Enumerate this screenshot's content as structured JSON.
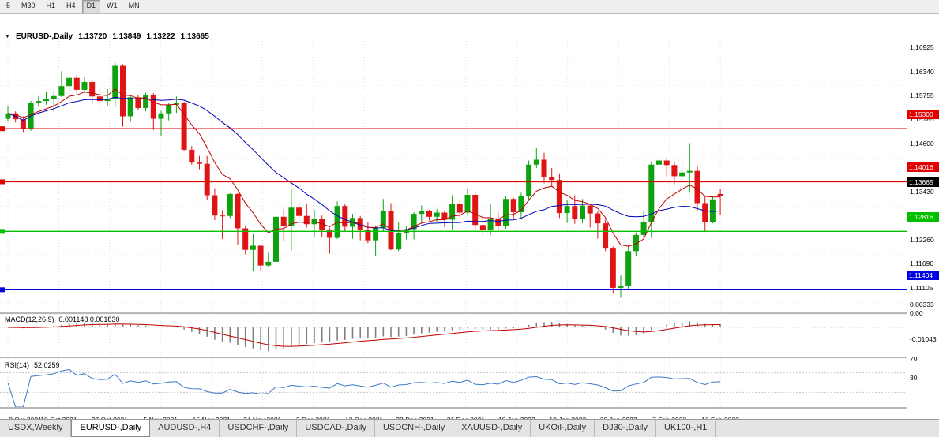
{
  "icons": {
    "dropdown": "▼"
  },
  "toolbar": {
    "timeframes": [
      {
        "label": "5"
      },
      {
        "label": "M30"
      },
      {
        "label": "H1"
      },
      {
        "label": "H4"
      },
      {
        "label": "D1",
        "active": true
      },
      {
        "label": "W1"
      },
      {
        "label": "MN"
      }
    ]
  },
  "tabs": [
    {
      "label": "USDX,Weekly"
    },
    {
      "label": "EURUSD-,Daily",
      "active": true
    },
    {
      "label": "AUDUSD-,H4"
    },
    {
      "label": "USDCHF-,Daily"
    },
    {
      "label": "USDCAD-,Daily"
    },
    {
      "label": "USDCNH-,Daily"
    },
    {
      "label": "XAUUSD-,Daily"
    },
    {
      "label": "UKOil-,Daily"
    },
    {
      "label": "DJ30-,Daily"
    },
    {
      "label": "UK100-,H1"
    }
  ],
  "chart_data": {
    "type": "candlestick",
    "symbol_display": "EURUSD-,Daily",
    "ohlc_display": {
      "open": "1.13720",
      "high": "1.13849",
      "low": "1.13222",
      "close": "1.13665"
    },
    "ylim": [
      1.1086,
      1.17727
    ],
    "up_color": "#0ea30e",
    "down_color": "#e01414",
    "x_labels": [
      "8 Oct 2021",
      "18 Oct 2021",
      "27 Oct 2021",
      "5 Nov 2021",
      "15 Nov 2021",
      "24 Nov 2021",
      "3 Dec 2021",
      "13 Dec 2021",
      "22 Dec 2021",
      "31 Dec 2021",
      "10 Jan 2022",
      "19 Jan 2022",
      "28 Jan 2022",
      "7 Feb 2022",
      "16 Feb 2022"
    ],
    "y_ticks": [
      {
        "label": "1.16925",
        "value": 1.16925
      },
      {
        "label": "1.16340",
        "value": 1.1634
      },
      {
        "label": "1.15755",
        "value": 1.15755
      },
      {
        "label": "1.15185",
        "value": 1.15185
      },
      {
        "label": "1.14600",
        "value": 1.146
      },
      {
        "label": "1.13430",
        "value": 1.1343
      },
      {
        "label": "1.12260",
        "value": 1.1226
      },
      {
        "label": "1.11690",
        "value": 1.1169
      },
      {
        "label": "1.11105",
        "value": 1.11105
      }
    ],
    "hlines": [
      {
        "label": "1.15300",
        "value": 1.153,
        "color": "#e00000"
      },
      {
        "label": "1.14016",
        "value": 1.14016,
        "color": "#e00000"
      },
      {
        "label": "1.12816",
        "value": 1.12816,
        "color": "#00c000"
      },
      {
        "label": "1.11404",
        "value": 1.11404,
        "color": "#0000e0"
      }
    ],
    "current_price": {
      "label": "1.13665",
      "value": 1.13665,
      "color": "#000000"
    },
    "ma_lines": [
      {
        "name": "ma-slow-blue",
        "color": "#0000b8",
        "period": 21,
        "type": "sma"
      },
      {
        "name": "ma-fast-red",
        "color": "#c00000",
        "period": 8,
        "type": "ema"
      }
    ],
    "candles": [
      [
        1.1554,
        1.1586,
        1.1547,
        1.1567
      ],
      [
        1.1567,
        1.1572,
        1.1545,
        1.1553
      ],
      [
        1.1553,
        1.156,
        1.1522,
        1.153
      ],
      [
        1.153,
        1.1597,
        1.1525,
        1.1592
      ],
      [
        1.1592,
        1.1608,
        1.1583,
        1.1597
      ],
      [
        1.1597,
        1.1619,
        1.1588,
        1.1601
      ],
      [
        1.1601,
        1.1621,
        1.1571,
        1.1609
      ],
      [
        1.1609,
        1.1669,
        1.1607,
        1.1633
      ],
      [
        1.1633,
        1.1658,
        1.1617,
        1.1653
      ],
      [
        1.1653,
        1.1659,
        1.1616,
        1.1624
      ],
      [
        1.1624,
        1.1656,
        1.162,
        1.1643
      ],
      [
        1.1643,
        1.1648,
        1.159,
        1.1608
      ],
      [
        1.1608,
        1.1626,
        1.1585,
        1.1597
      ],
      [
        1.1597,
        1.1626,
        1.1585,
        1.1603
      ],
      [
        1.1603,
        1.1692,
        1.1582,
        1.1682
      ],
      [
        1.1682,
        1.1686,
        1.1535,
        1.156
      ],
      [
        1.156,
        1.1609,
        1.1546,
        1.1606
      ],
      [
        1.1606,
        1.1612,
        1.1575,
        1.158
      ],
      [
        1.158,
        1.1617,
        1.1572,
        1.1611
      ],
      [
        1.1611,
        1.1616,
        1.1527,
        1.1554
      ],
      [
        1.1554,
        1.1573,
        1.1513,
        1.1567
      ],
      [
        1.1567,
        1.1592,
        1.155,
        1.1588
      ],
      [
        1.1588,
        1.1608,
        1.1568,
        1.1593
      ],
      [
        1.1593,
        1.1595,
        1.1475,
        1.1479
      ],
      [
        1.1479,
        1.1488,
        1.1443,
        1.1448
      ],
      [
        1.1448,
        1.1464,
        1.1432,
        1.1445
      ],
      [
        1.1445,
        1.1464,
        1.1357,
        1.1369
      ],
      [
        1.1369,
        1.1386,
        1.1309,
        1.132
      ],
      [
        1.132,
        1.1333,
        1.1263,
        1.1319
      ],
      [
        1.1319,
        1.1374,
        1.1314,
        1.1372
      ],
      [
        1.1372,
        1.1374,
        1.125,
        1.1289
      ],
      [
        1.1289,
        1.1296,
        1.1226,
        1.1237
      ],
      [
        1.1237,
        1.1275,
        1.1185,
        1.1247
      ],
      [
        1.1247,
        1.125,
        1.1186,
        1.1199
      ],
      [
        1.1199,
        1.123,
        1.1196,
        1.1208
      ],
      [
        1.1208,
        1.1323,
        1.1203,
        1.1317
      ],
      [
        1.1317,
        1.1336,
        1.1258,
        1.1294
      ],
      [
        1.1294,
        1.1383,
        1.1235,
        1.1339
      ],
      [
        1.1339,
        1.136,
        1.1305,
        1.1319
      ],
      [
        1.1319,
        1.1348,
        1.1291,
        1.1299
      ],
      [
        1.1299,
        1.1334,
        1.1267,
        1.1312
      ],
      [
        1.1312,
        1.132,
        1.1267,
        1.1284
      ],
      [
        1.1284,
        1.129,
        1.1228,
        1.1266
      ],
      [
        1.1266,
        1.1354,
        1.1263,
        1.1343
      ],
      [
        1.1343,
        1.1348,
        1.128,
        1.1293
      ],
      [
        1.1293,
        1.1324,
        1.1264,
        1.1314
      ],
      [
        1.1314,
        1.1319,
        1.126,
        1.1286
      ],
      [
        1.1286,
        1.1304,
        1.1253,
        1.126
      ],
      [
        1.126,
        1.1296,
        1.1222,
        1.129
      ],
      [
        1.129,
        1.136,
        1.128,
        1.1331
      ],
      [
        1.1331,
        1.135,
        1.1236,
        1.1238
      ],
      [
        1.1238,
        1.1304,
        1.1234,
        1.1278
      ],
      [
        1.1278,
        1.1295,
        1.1262,
        1.1287
      ],
      [
        1.1287,
        1.1328,
        1.1262,
        1.1324
      ],
      [
        1.1324,
        1.1344,
        1.13,
        1.133
      ],
      [
        1.133,
        1.1334,
        1.1308,
        1.1317
      ],
      [
        1.1317,
        1.1335,
        1.1304,
        1.1327
      ],
      [
        1.1327,
        1.1332,
        1.1292,
        1.131
      ],
      [
        1.131,
        1.1369,
        1.1285,
        1.1349
      ],
      [
        1.1349,
        1.136,
        1.1315,
        1.1327
      ],
      [
        1.1327,
        1.1386,
        1.1321,
        1.137
      ],
      [
        1.137,
        1.1379,
        1.1279,
        1.1297
      ],
      [
        1.1297,
        1.1323,
        1.1272,
        1.1285
      ],
      [
        1.1285,
        1.1347,
        1.1272,
        1.1313
      ],
      [
        1.1313,
        1.1332,
        1.1285,
        1.1295
      ],
      [
        1.1295,
        1.1368,
        1.1288,
        1.136
      ],
      [
        1.136,
        1.1363,
        1.1313,
        1.1328
      ],
      [
        1.1328,
        1.1375,
        1.1314,
        1.1367
      ],
      [
        1.1367,
        1.1453,
        1.1355,
        1.1443
      ],
      [
        1.1443,
        1.1483,
        1.1435,
        1.1455
      ],
      [
        1.1455,
        1.1472,
        1.1398,
        1.1413
      ],
      [
        1.1413,
        1.1435,
        1.1392,
        1.1406
      ],
      [
        1.1406,
        1.1422,
        1.1314,
        1.1326
      ],
      [
        1.1326,
        1.1357,
        1.1302,
        1.1343
      ],
      [
        1.1343,
        1.1369,
        1.13,
        1.1312
      ],
      [
        1.1312,
        1.136,
        1.1301,
        1.1344
      ],
      [
        1.1344,
        1.1346,
        1.1291,
        1.1325
      ],
      [
        1.1325,
        1.133,
        1.1264,
        1.1301
      ],
      [
        1.1301,
        1.131,
        1.1234,
        1.124
      ],
      [
        1.124,
        1.1245,
        1.1131,
        1.1145
      ],
      [
        1.1145,
        1.1175,
        1.1121,
        1.1149
      ],
      [
        1.1149,
        1.1248,
        1.1141,
        1.1234
      ],
      [
        1.1234,
        1.1279,
        1.1221,
        1.1273
      ],
      [
        1.1273,
        1.133,
        1.1266,
        1.1304
      ],
      [
        1.1304,
        1.1451,
        1.1266,
        1.1443
      ],
      [
        1.1443,
        1.1483,
        1.1411,
        1.1453
      ],
      [
        1.1453,
        1.1459,
        1.1415,
        1.1442
      ],
      [
        1.1442,
        1.1449,
        1.1396,
        1.1415
      ],
      [
        1.1415,
        1.1448,
        1.1403,
        1.1424
      ],
      [
        1.1424,
        1.1495,
        1.1375,
        1.1428
      ],
      [
        1.1428,
        1.144,
        1.133,
        1.135
      ],
      [
        1.135,
        1.1369,
        1.128,
        1.1305
      ],
      [
        1.1305,
        1.1367,
        1.1301,
        1.1359
      ],
      [
        1.1372,
        1.13849,
        1.13222,
        1.13665
      ]
    ],
    "indicators": {
      "macd": {
        "label": "MACD(12,26,9)",
        "display_values": "0.001148 0.001830",
        "fast": 12,
        "slow": 26,
        "signal": 9,
        "histogram_color": "#808080",
        "signal_color": "#c00000",
        "axis": [
          {
            "label": "0.00333",
            "value": 0.00333
          },
          {
            "label": "0.00",
            "value": 0.0
          },
          {
            "label": "-0.01043",
            "value": -0.01043
          }
        ]
      },
      "rsi": {
        "label": "RSI(14)",
        "display_value": "52.0259",
        "period": 14,
        "line_color": "#3c78c8",
        "levels": [
          {
            "label": "70",
            "value": 70
          },
          {
            "label": "30",
            "value": 30
          }
        ]
      }
    }
  }
}
